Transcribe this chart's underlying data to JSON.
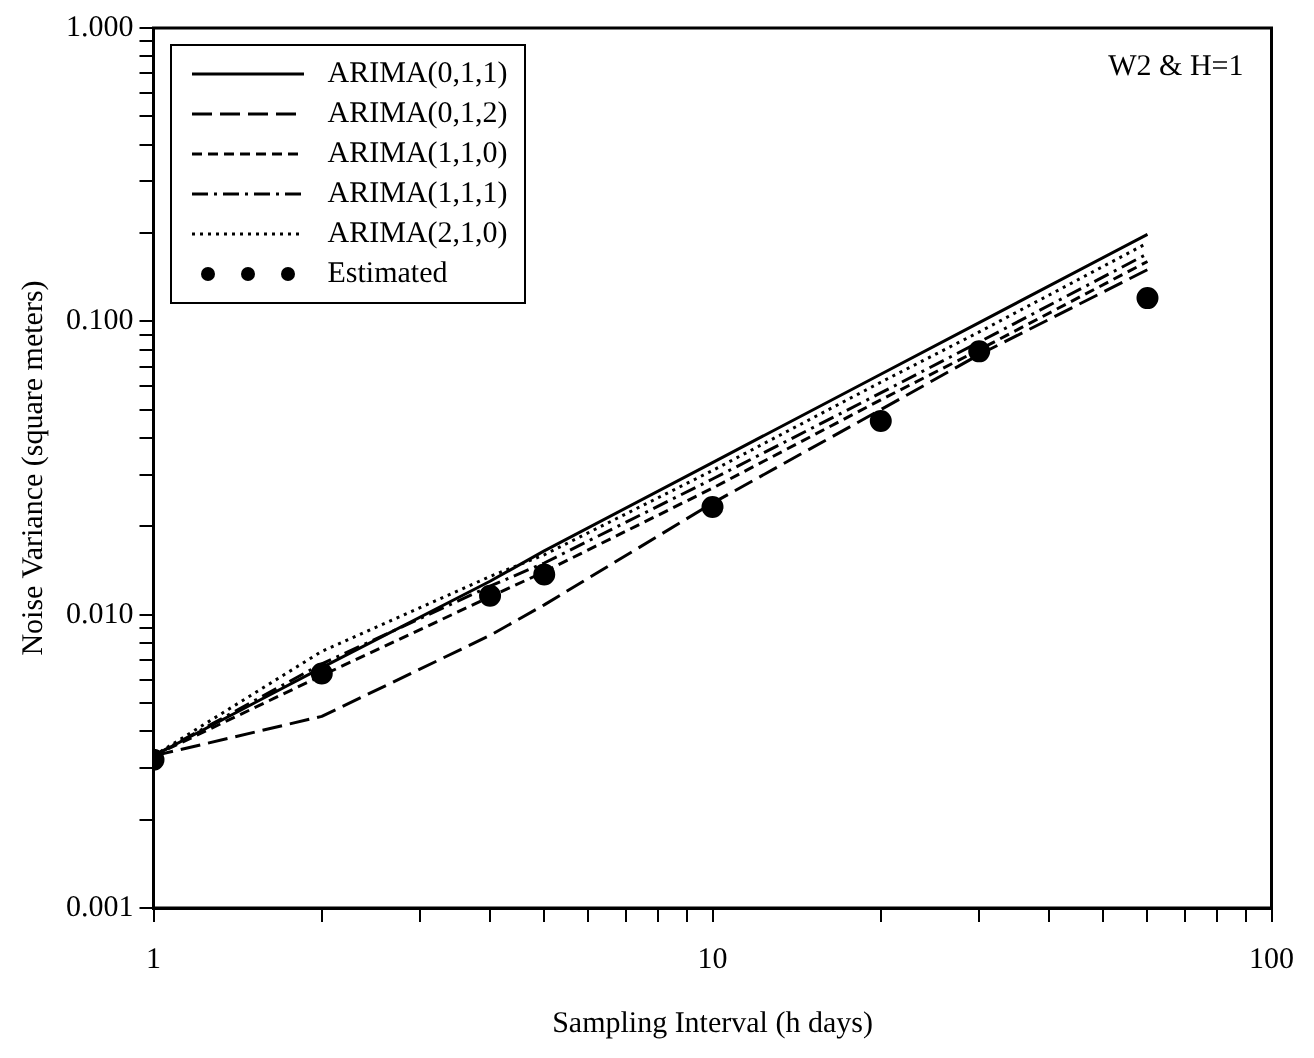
{
  "chart_data": {
    "type": "line",
    "xlabel": "Sampling Interval (h days)",
    "ylabel": "Noise Variance (square meters)",
    "log": "xy",
    "grid": false,
    "legend": "top left",
    "annotations": [
      "W2 & H=1"
    ],
    "x": [
      1,
      2,
      4,
      5,
      10,
      20,
      30,
      60
    ],
    "xlim": [
      1,
      100
    ],
    "xticks": [
      1,
      {
        "value": 2,
        "label": null
      },
      {
        "value": 3,
        "label": null
      },
      {
        "value": 4,
        "label": null
      },
      {
        "value": 5,
        "label": null
      },
      {
        "value": 6,
        "label": null
      },
      {
        "value": 7,
        "label": null
      },
      {
        "value": 8,
        "label": null
      },
      {
        "value": 9,
        "label": null
      },
      10,
      {
        "value": 20,
        "label": null
      },
      {
        "value": 30,
        "label": null
      },
      {
        "value": 40,
        "label": null
      },
      {
        "value": 50,
        "label": null
      },
      {
        "value": 60,
        "label": null
      },
      {
        "value": 70,
        "label": null
      },
      {
        "value": 80,
        "label": null
      },
      {
        "value": 90,
        "label": null
      },
      100
    ],
    "ylim": [
      0.001,
      1
    ],
    "yticks": [
      {
        "value": 0.001,
        "label": "0.001"
      },
      {
        "value": 0.002,
        "label": null
      },
      {
        "value": 0.003,
        "label": null
      },
      {
        "value": 0.004,
        "label": null
      },
      {
        "value": 0.005,
        "label": null
      },
      {
        "value": 0.006,
        "label": null
      },
      {
        "value": 0.007,
        "label": null
      },
      {
        "value": 0.008,
        "label": null
      },
      {
        "value": 0.009,
        "label": null
      },
      {
        "value": 0.01,
        "label": "0.010"
      },
      {
        "value": 0.02,
        "label": null
      },
      {
        "value": 0.03,
        "label": null
      },
      {
        "value": 0.04,
        "label": null
      },
      {
        "value": 0.05,
        "label": null
      },
      {
        "value": 0.06,
        "label": null
      },
      {
        "value": 0.07,
        "label": null
      },
      {
        "value": 0.08,
        "label": null
      },
      {
        "value": 0.09,
        "label": null
      },
      {
        "value": 0.1,
        "label": "0.100"
      },
      {
        "value": 0.2,
        "label": null
      },
      {
        "value": 0.3,
        "label": null
      },
      {
        "value": 0.4,
        "label": null
      },
      {
        "value": 0.5,
        "label": null
      },
      {
        "value": 0.6,
        "label": null
      },
      {
        "value": 0.7,
        "label": null
      },
      {
        "value": 0.8,
        "label": null
      },
      {
        "value": 0.9,
        "label": null
      },
      {
        "value": 1,
        "label": "1.000"
      }
    ],
    "series": [
      {
        "name": "ARIMA(0,1,1)",
        "color": "#000000",
        "line_style": "solid",
        "values": [
          0.0033,
          0.0066,
          0.013,
          0.0165,
          0.033,
          0.066,
          0.099,
          0.198
        ]
      },
      {
        "name": "ARIMA(0,1,2)",
        "color": "#000000",
        "line_style": "longdash",
        "values": [
          0.0033,
          0.0045,
          0.0085,
          0.0108,
          0.024,
          0.05,
          0.077,
          0.15
        ]
      },
      {
        "name": "ARIMA(1,1,0)",
        "color": "#000000",
        "line_style": "dashed",
        "values": [
          0.0033,
          0.0062,
          0.0115,
          0.014,
          0.027,
          0.054,
          0.08,
          0.16
        ]
      },
      {
        "name": "ARIMA(1,1,1)",
        "color": "#000000",
        "line_style": "dashdot",
        "values": [
          0.0033,
          0.0068,
          0.0125,
          0.015,
          0.029,
          0.057,
          0.085,
          0.17
        ]
      },
      {
        "name": "ARIMA(2,1,0)",
        "color": "#000000",
        "line_style": "dotted",
        "values": [
          0.0033,
          0.0075,
          0.0135,
          0.016,
          0.031,
          0.062,
          0.092,
          0.185
        ]
      },
      {
        "name": "Estimated",
        "type": "scatter",
        "marker": "circle",
        "color": "#000000",
        "values": [
          0.0032,
          0.0063,
          0.0116,
          0.0137,
          0.0233,
          0.0457,
          0.079,
          0.12
        ]
      }
    ]
  }
}
